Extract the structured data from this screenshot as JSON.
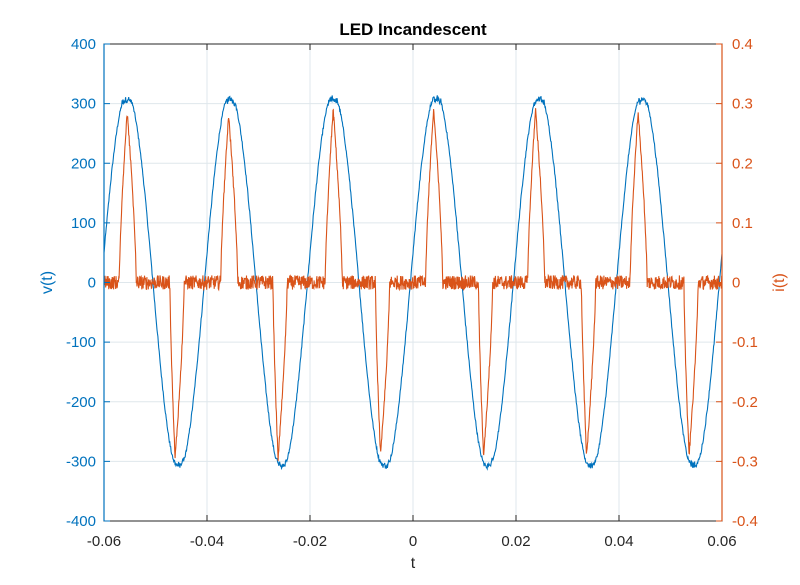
{
  "colors": {
    "voltage": "#0072BD",
    "current": "#D95319",
    "axis": "#262626",
    "grid": "#dfe7ec"
  },
  "chart_data": {
    "type": "line",
    "title": "LED Incandescent",
    "xlabel": "t",
    "ylabel_left": "v(t)",
    "ylabel_right": "i(t)",
    "xlim": [
      -0.06,
      0.06
    ],
    "ylim_left": [
      -400,
      400
    ],
    "ylim_right": [
      -0.4,
      0.4
    ],
    "grid": true,
    "x_ticks": [
      "-0.06",
      "-0.04",
      "-0.02",
      "0",
      "0.02",
      "0.04",
      "0.06"
    ],
    "left_ticks": [
      "400",
      "300",
      "200",
      "100",
      "0",
      "-100",
      "-200",
      "-300",
      "-400"
    ],
    "right_ticks": [
      "0.4",
      "0.3",
      "0.2",
      "0.1",
      "0",
      "-0.1",
      "-0.2",
      "-0.3",
      "-0.4"
    ],
    "series": [
      {
        "axis": "left",
        "color": "#0072BD",
        "shape": "sine",
        "amplitude": 315,
        "frequency_hz": 50,
        "phase_peak_t": [
          -0.0555,
          -0.0355,
          -0.0155,
          0.0045,
          0.0245,
          0.0445
        ],
        "x": [
          -0.06,
          -0.0555,
          -0.0505,
          -0.0455,
          -0.0405,
          -0.0355,
          -0.0305,
          -0.0255,
          -0.0205,
          -0.0155,
          -0.0105,
          -0.0055,
          -0.0005,
          0.0045,
          0.0095,
          0.0145,
          0.0195,
          0.0245,
          0.0295,
          0.0345,
          0.0395,
          0.0445,
          0.0495,
          0.0545,
          0.06
        ],
        "y": [
          50,
          322,
          0,
          -310,
          0,
          315,
          0,
          -310,
          0,
          320,
          0,
          -310,
          0,
          320,
          0,
          -310,
          0,
          318,
          0,
          -312,
          0,
          322,
          0,
          -312,
          0
        ]
      },
      {
        "axis": "right",
        "color": "#D95319",
        "shape": "pulse",
        "positive_pulses": [
          {
            "t": -0.0555,
            "peak": 0.285
          },
          {
            "t": -0.0358,
            "peak": 0.28
          },
          {
            "t": -0.0155,
            "peak": 0.29
          },
          {
            "t": 0.004,
            "peak": 0.29
          },
          {
            "t": 0.0238,
            "peak": 0.29
          },
          {
            "t": 0.0437,
            "peak": 0.285
          }
        ],
        "negative_pulses": [
          {
            "t": -0.0462,
            "peak": -0.295
          },
          {
            "t": -0.0262,
            "peak": -0.295
          },
          {
            "t": -0.0063,
            "peak": -0.29
          },
          {
            "t": 0.0137,
            "peak": -0.29
          },
          {
            "t": 0.0337,
            "peak": -0.29
          },
          {
            "t": 0.0536,
            "peak": -0.29
          }
        ],
        "baseline_noise": 0.012
      }
    ]
  }
}
